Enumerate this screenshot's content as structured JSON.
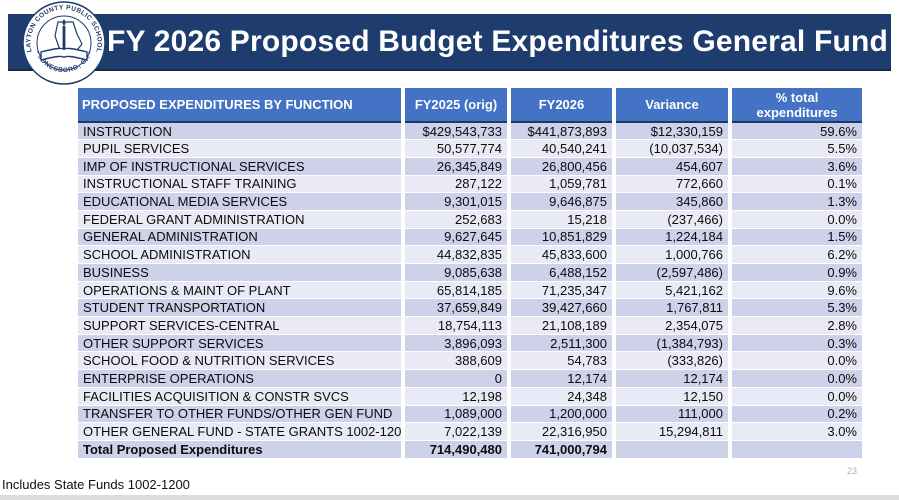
{
  "banner": {
    "title": "FY 2026 Proposed Budget Expenditures General Fund"
  },
  "logo": {
    "top_text": "CLAYTON COUNTY PUBLIC SCHOOLS",
    "bottom_text": "• JONESBORO, GA •"
  },
  "table": {
    "columns": [
      "PROPOSED EXPENDITURES BY FUNCTION",
      "FY2025 (orig)",
      "FY2026",
      "Variance",
      "% total expenditures"
    ],
    "rows": [
      {
        "function": "INSTRUCTION",
        "fy2025": "$429,543,733",
        "fy2026": "$441,873,893",
        "variance": "$12,330,159",
        "pct": "59.6%"
      },
      {
        "function": "PUPIL SERVICES",
        "fy2025": "50,577,774",
        "fy2026": "40,540,241",
        "variance": "(10,037,534)",
        "pct": "5.5%"
      },
      {
        "function": "IMP OF INSTRUCTIONAL SERVICES",
        "fy2025": "26,345,849",
        "fy2026": "26,800,456",
        "variance": "454,607",
        "pct": "3.6%"
      },
      {
        "function": "INSTRUCTIONAL STAFF TRAINING",
        "fy2025": "287,122",
        "fy2026": "1,059,781",
        "variance": "772,660",
        "pct": "0.1%"
      },
      {
        "function": "EDUCATIONAL MEDIA SERVICES",
        "fy2025": "9,301,015",
        "fy2026": "9,646,875",
        "variance": "345,860",
        "pct": "1.3%"
      },
      {
        "function": "FEDERAL GRANT ADMINISTRATION",
        "fy2025": "252,683",
        "fy2026": "15,218",
        "variance": "(237,466)",
        "pct": "0.0%"
      },
      {
        "function": "GENERAL ADMINISTRATION",
        "fy2025": "9,627,645",
        "fy2026": "10,851,829",
        "variance": "1,224,184",
        "pct": "1.5%"
      },
      {
        "function": "SCHOOL ADMINISTRATION",
        "fy2025": "44,832,835",
        "fy2026": "45,833,600",
        "variance": "1,000,766",
        "pct": "6.2%"
      },
      {
        "function": "BUSINESS",
        "fy2025": "9,085,638",
        "fy2026": "6,488,152",
        "variance": "(2,597,486)",
        "pct": "0.9%"
      },
      {
        "function": "OPERATIONS & MAINT OF PLANT",
        "fy2025": "65,814,185",
        "fy2026": "71,235,347",
        "variance": "5,421,162",
        "pct": "9.6%"
      },
      {
        "function": "STUDENT TRANSPORTATION",
        "fy2025": "37,659,849",
        "fy2026": "39,427,660",
        "variance": "1,767,811",
        "pct": "5.3%"
      },
      {
        "function": "SUPPORT SERVICES-CENTRAL",
        "fy2025": "18,754,113",
        "fy2026": "21,108,189",
        "variance": "2,354,075",
        "pct": "2.8%"
      },
      {
        "function": "OTHER SUPPORT SERVICES",
        "fy2025": "3,896,093",
        "fy2026": "2,511,300",
        "variance": "(1,384,793)",
        "pct": "0.3%"
      },
      {
        "function": "SCHOOL FOOD & NUTRITION SERVICES",
        "fy2025": "388,609",
        "fy2026": "54,783",
        "variance": "(333,826)",
        "pct": "0.0%"
      },
      {
        "function": "ENTERPRISE OPERATIONS",
        "fy2025": "0",
        "fy2026": "12,174",
        "variance": "12,174",
        "pct": "0.0%"
      },
      {
        "function": "FACILITIES ACQUISITION & CONSTR SVCS",
        "fy2025": "12,198",
        "fy2026": "24,348",
        "variance": "12,150",
        "pct": "0.0%"
      },
      {
        "function": "TRANSFER TO OTHER FUNDS/OTHER GEN FUND",
        "fy2025": "1,089,000",
        "fy2026": "1,200,000",
        "variance": "111,000",
        "pct": "0.2%"
      },
      {
        "function": "OTHER GENERAL FUND - STATE GRANTS 1002-1200",
        "fy2025": "7,022,139",
        "fy2026": "22,316,950",
        "variance": "15,294,811",
        "pct": "3.0%"
      }
    ],
    "total": {
      "function": "Total Proposed Expenditures",
      "fy2025": "714,490,480",
      "fy2026": "741,000,794",
      "variance": "",
      "pct": ""
    }
  },
  "footer": {
    "note": "Includes State Funds 1002-1200",
    "page_number": "23"
  },
  "colors": {
    "banner_navy": "#1E3C6E",
    "header_blue": "#4472C4",
    "row_dark": "#CDD1EA",
    "row_light": "#E9EAF6"
  }
}
